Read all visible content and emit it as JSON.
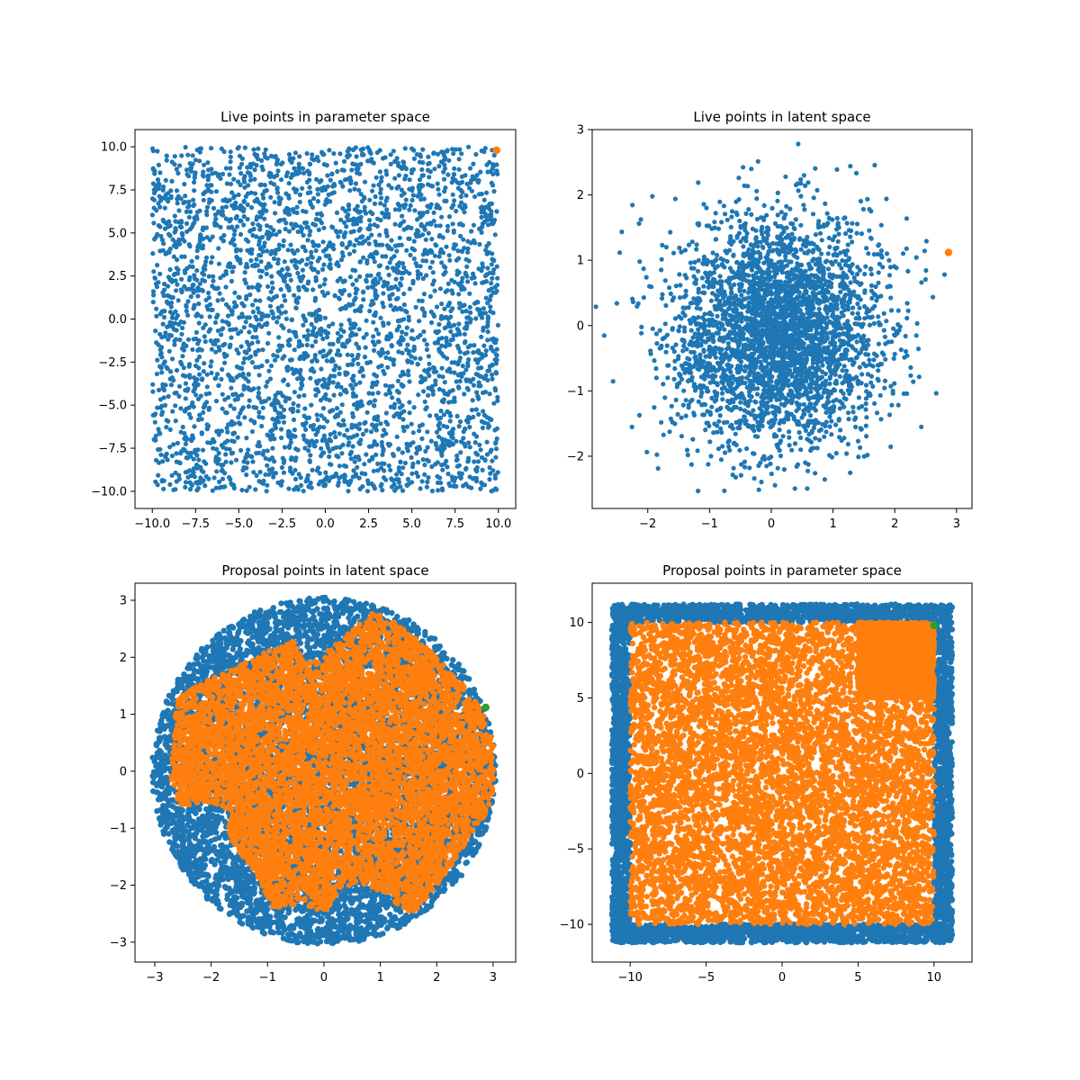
{
  "figure": {
    "background": "#ffffff",
    "colors": {
      "blue": "#1f77b4",
      "orange": "#ff7f0e",
      "green": "#2ca02c"
    }
  },
  "chart_data": [
    {
      "type": "scatter",
      "title": "Live points in parameter space",
      "xlim": [
        -11,
        11
      ],
      "ylim": [
        -11,
        11
      ],
      "xticks": [
        -10.0,
        -7.5,
        -5.0,
        -2.5,
        0.0,
        2.5,
        5.0,
        7.5,
        10.0
      ],
      "xtick_labels": [
        "−10.0",
        "−7.5",
        "−5.0",
        "−2.5",
        "0.0",
        "2.5",
        "5.0",
        "7.5",
        "10.0"
      ],
      "yticks": [
        -10.0,
        -7.5,
        -5.0,
        -2.5,
        0.0,
        2.5,
        5.0,
        7.5,
        10.0
      ],
      "ytick_labels": [
        "−10.0",
        "−7.5",
        "−5.0",
        "−2.5",
        "0.0",
        "2.5",
        "5.0",
        "7.5",
        "10.0"
      ],
      "series": [
        {
          "color": "#1f77b4",
          "marker_size": 2.6,
          "distribution": {
            "shape": "uniform-box",
            "x": [
              -10,
              10
            ],
            "y": [
              -10,
              10
            ],
            "n": 3400
          }
        },
        {
          "color": "#ff7f0e",
          "marker_size": 4.2,
          "points": [
            [
              9.9,
              9.8
            ]
          ]
        }
      ],
      "grid": false
    },
    {
      "type": "scatter",
      "title": "Live points in latent space",
      "xlim": [
        -2.9,
        3.25
      ],
      "ylim": [
        -2.8,
        3.0
      ],
      "xticks": [
        -2,
        -1,
        0,
        1,
        2,
        3
      ],
      "xtick_labels": [
        "−2",
        "−1",
        "0",
        "1",
        "2",
        "3"
      ],
      "yticks": [
        -2,
        -1,
        0,
        1,
        2,
        3
      ],
      "ytick_labels": [
        "−2",
        "−1",
        "0",
        "1",
        "2",
        "3"
      ],
      "series": [
        {
          "color": "#1f77b4",
          "marker_size": 2.6,
          "distribution": {
            "shape": "gaussian",
            "center": [
              0.1,
              -0.1
            ],
            "sigma": 0.85,
            "radius": 3.0,
            "n": 3400
          }
        },
        {
          "color": "#ff7f0e",
          "marker_size": 4.2,
          "points": [
            [
              2.87,
              1.12
            ]
          ]
        }
      ],
      "grid": false
    },
    {
      "type": "scatter",
      "title": "Proposal points in latent space",
      "xlim": [
        -3.35,
        3.4
      ],
      "ylim": [
        -3.35,
        3.3
      ],
      "xticks": [
        -3,
        -2,
        -1,
        0,
        1,
        2,
        3
      ],
      "xtick_labels": [
        "−3",
        "−2",
        "−1",
        "0",
        "1",
        "2",
        "3"
      ],
      "yticks": [
        -3,
        -2,
        -1,
        0,
        1,
        2,
        3
      ],
      "ytick_labels": [
        "−3",
        "−2",
        "−1",
        "0",
        "1",
        "2",
        "3"
      ],
      "series": [
        {
          "color": "#1f77b4",
          "marker_size": 3.2,
          "distribution": {
            "shape": "disc",
            "center": [
              0.0,
              0.0
            ],
            "radius": 3.05,
            "n": 7000
          }
        },
        {
          "color": "#ff7f0e",
          "marker_size": 3.2,
          "distribution": {
            "shape": "polygon",
            "n": 6500,
            "vertices": [
              [
                -2.6,
                1.3
              ],
              [
                -2.05,
                1.6
              ],
              [
                -1.5,
                1.85
              ],
              [
                -0.7,
                2.25
              ],
              [
                -0.55,
                2.3
              ],
              [
                -0.45,
                2.1
              ],
              [
                -0.3,
                1.95
              ],
              [
                0.0,
                2.05
              ],
              [
                0.4,
                2.4
              ],
              [
                0.6,
                2.55
              ],
              [
                0.9,
                2.8
              ],
              [
                1.2,
                2.65
              ],
              [
                1.6,
                2.35
              ],
              [
                2.0,
                2.0
              ],
              [
                2.4,
                1.6
              ],
              [
                2.7,
                1.2
              ],
              [
                2.85,
                0.95
              ],
              [
                3.0,
                0.5
              ],
              [
                3.0,
                -0.5
              ],
              [
                2.8,
                -0.85
              ],
              [
                2.55,
                -1.2
              ],
              [
                2.2,
                -1.75
              ],
              [
                2.0,
                -2.0
              ],
              [
                1.6,
                -2.5
              ],
              [
                1.2,
                -2.3
              ],
              [
                1.0,
                -2.1
              ],
              [
                0.6,
                -1.95
              ],
              [
                0.3,
                -2.05
              ],
              [
                0.0,
                -2.5
              ],
              [
                -0.3,
                -2.35
              ],
              [
                -0.9,
                -2.4
              ],
              [
                -1.1,
                -2.0
              ],
              [
                -1.3,
                -1.65
              ],
              [
                -1.6,
                -1.3
              ],
              [
                -1.7,
                -1.0
              ],
              [
                -1.6,
                -0.7
              ],
              [
                -2.05,
                -0.55
              ],
              [
                -2.55,
                -0.6
              ],
              [
                -2.7,
                -0.3
              ],
              [
                -2.7,
                0.4
              ]
            ]
          }
        },
        {
          "color": "#2ca02c",
          "marker_size": 4.2,
          "points": [
            [
              2.87,
              1.12
            ]
          ]
        }
      ],
      "grid": false
    },
    {
      "type": "scatter",
      "title": "Proposal points in parameter space",
      "xlim": [
        -12.5,
        12.5
      ],
      "ylim": [
        -12.5,
        12.6
      ],
      "xticks": [
        -10,
        -5,
        0,
        5,
        10
      ],
      "xtick_labels": [
        "−10",
        "−5",
        "0",
        "5",
        "10"
      ],
      "yticks": [
        -10,
        -5,
        0,
        5,
        10
      ],
      "ytick_labels": [
        "−10",
        "−5",
        "0",
        "5",
        "10"
      ],
      "series": [
        {
          "color": "#1f77b4",
          "marker_size": 3.2,
          "distribution": {
            "shape": "ring-box",
            "outer": [
              -11.2,
              11.2
            ],
            "inner": [
              -10,
              10
            ],
            "n": 4500
          }
        },
        {
          "color": "#ff7f0e",
          "marker_size": 3.2,
          "distribution": {
            "shape": "uniform-box",
            "x": [
              -10,
              10
            ],
            "y": [
              -10,
              10
            ],
            "n": 6500,
            "dense_corner": {
              "x": [
                5,
                10
              ],
              "y": [
                5,
                10
              ],
              "n": 2500
            }
          }
        },
        {
          "color": "#2ca02c",
          "marker_size": 4.2,
          "points": [
            [
              10.0,
              9.8
            ]
          ]
        }
      ],
      "grid": false
    }
  ]
}
